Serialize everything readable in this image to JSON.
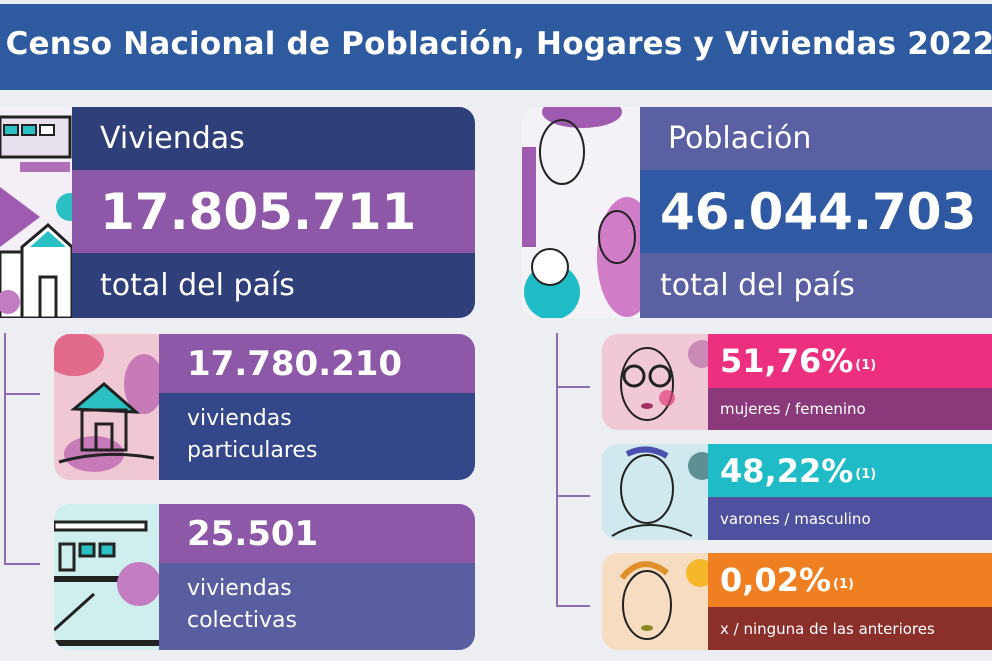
{
  "title": "Censo Nacional de Población, Hogares y Viviendas 2022",
  "viviendas": {
    "label": "Viviendas",
    "value": "17.805.711",
    "sublabel": "total del país",
    "breakdown": [
      {
        "value": "17.780.210",
        "label_line1": "viviendas",
        "label_line2": "particulares"
      },
      {
        "value": "25.501",
        "label_line1": "viviendas",
        "label_line2": "colectivas"
      }
    ]
  },
  "poblacion": {
    "label": "Población",
    "value": "46.044.703",
    "sublabel": "total del país",
    "breakdown": [
      {
        "value": "51,76%",
        "note": "(1)",
        "label": "mujeres / femenino"
      },
      {
        "value": "48,22%",
        "note": "(1)",
        "label": "varones / masculino"
      },
      {
        "value": "0,02%",
        "note": "(1)",
        "label": "x / ninguna de las anteriores"
      }
    ]
  },
  "colors": {
    "title_bg": "#2e5aa0",
    "navy": "#2f3f7a",
    "purple": "#8e58a8",
    "blue": "#2f5aa3",
    "slate": "#5a60a2",
    "pink": "#ec2f7f",
    "teal": "#1fbcc7",
    "orange": "#f07f22"
  }
}
